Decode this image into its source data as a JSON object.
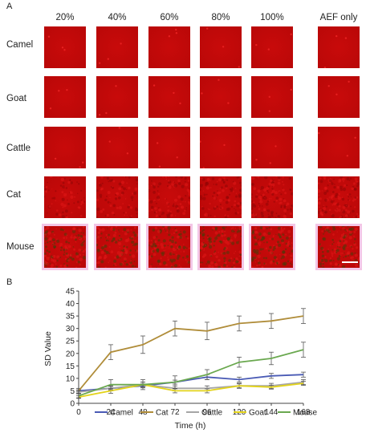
{
  "panel_a": {
    "letter": "A",
    "columns": [
      "20%",
      "40%",
      "60%",
      "80%",
      "100%",
      "AEF only"
    ],
    "rows": [
      {
        "label": "Camel",
        "pattern": "smooth"
      },
      {
        "label": "Goat",
        "pattern": "smooth"
      },
      {
        "label": "Cattle",
        "pattern": "smooth"
      },
      {
        "label": "Cat",
        "pattern": "speckled"
      },
      {
        "label": "Mouse",
        "pattern": "textured"
      }
    ],
    "colors": {
      "tile_red": "#c80a0a",
      "tile_dark": "#8f0606",
      "mouse_green": "#4a3a0a",
      "halo": "#f3c6e6"
    }
  },
  "chart_data": {
    "type": "line",
    "panel_letter": "B",
    "x": [
      0,
      24,
      48,
      72,
      96,
      120,
      144,
      168
    ],
    "xlabel": "Time (h)",
    "ylabel": "SD Value",
    "xlim": [
      0,
      168
    ],
    "ylim": [
      0,
      45
    ],
    "xticks": [
      0,
      24,
      48,
      72,
      96,
      120,
      144,
      168
    ],
    "yticks": [
      0,
      5,
      10,
      15,
      20,
      25,
      30,
      35,
      40,
      45
    ],
    "grid": false,
    "legend": "bottom",
    "series": [
      {
        "name": "Camel",
        "color": "#4a5bb5",
        "values": [
          5,
          6,
          7,
          8.5,
          10.5,
          9.5,
          11,
          11.5
        ],
        "errors": [
          0.5,
          0.8,
          0.8,
          0.8,
          1,
          1,
          1,
          1
        ]
      },
      {
        "name": "Cat",
        "color": "#b08d3a",
        "values": [
          5,
          20.5,
          23.5,
          30,
          29,
          32,
          33,
          35
        ],
        "errors": [
          1,
          3,
          3.5,
          3,
          3.5,
          3,
          3,
          3
        ]
      },
      {
        "name": "Cattle",
        "color": "#a6a6a6",
        "values": [
          4.5,
          6,
          7.5,
          6,
          6,
          7,
          7,
          8.5
        ],
        "errors": [
          0.5,
          1,
          1,
          1,
          1,
          1,
          1,
          1
        ]
      },
      {
        "name": "Goat",
        "color": "#e3d31a",
        "values": [
          2.5,
          5,
          7.5,
          5,
          5,
          7,
          6.5,
          8
        ],
        "errors": [
          0.5,
          1,
          1,
          0.8,
          0.8,
          0.8,
          0.8,
          0.8
        ]
      },
      {
        "name": "Mouse",
        "color": "#6aa84f",
        "values": [
          3,
          7.5,
          7.5,
          8.5,
          11.5,
          16.5,
          18,
          21.5
        ],
        "errors": [
          0.8,
          2,
          2,
          2.5,
          2,
          2,
          2.5,
          3
        ]
      }
    ]
  }
}
